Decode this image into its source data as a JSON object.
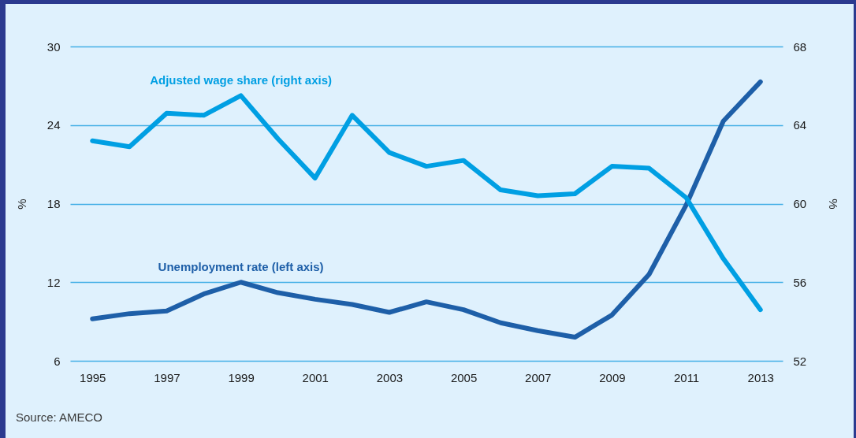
{
  "chart_data": {
    "type": "line",
    "x": [
      1995,
      1996,
      1997,
      1998,
      1999,
      2000,
      2001,
      2002,
      2003,
      2004,
      2005,
      2006,
      2007,
      2008,
      2009,
      2010,
      2011,
      2012,
      2013
    ],
    "series": [
      {
        "name": "Unemployment rate (left axis)",
        "color": "#1e5fa8",
        "values": [
          9.2,
          9.6,
          9.8,
          11.1,
          12.0,
          11.2,
          10.7,
          10.3,
          9.7,
          10.5,
          9.9,
          8.9,
          8.3,
          7.8,
          9.5,
          12.6,
          17.9,
          24.3,
          27.3
        ]
      },
      {
        "name": "Adjusted wage share (right axis)",
        "color": "#009fe3",
        "axis": "y2",
        "values": [
          63.2,
          62.9,
          64.6,
          64.5,
          65.5,
          63.3,
          61.3,
          64.5,
          62.6,
          61.9,
          62.2,
          60.7,
          60.4,
          60.5,
          61.9,
          61.8,
          60.3,
          57.2,
          54.6
        ]
      }
    ],
    "xlim": [
      1994.4,
      2013.6
    ],
    "xticks": [
      1995,
      1997,
      1999,
      2001,
      2003,
      2005,
      2007,
      2009,
      2011,
      2013
    ],
    "ylim": [
      6,
      30
    ],
    "yticks": [
      6,
      12,
      18,
      24,
      30
    ],
    "y2lim": [
      52,
      68
    ],
    "y2ticks": [
      52,
      56,
      60,
      64,
      68
    ],
    "ylabel": "%",
    "y2label": "%",
    "grid": "y",
    "legend": false,
    "line_style": "solid",
    "annotations": [
      "Source: AMECO"
    ]
  }
}
